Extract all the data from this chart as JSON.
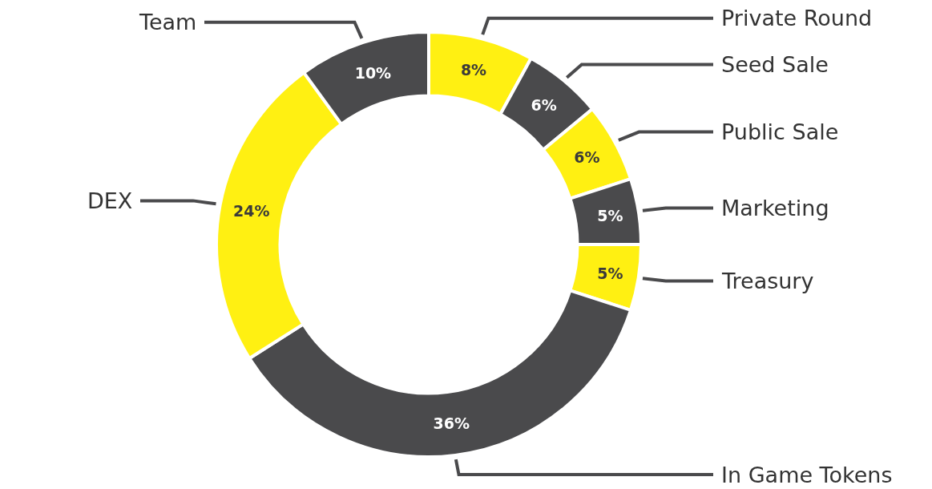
{
  "chart_data": {
    "type": "donut",
    "categories": [
      "Private Round",
      "Seed Sale",
      "Public Sale",
      "Marketing",
      "Treasury",
      "In Game Tokens",
      "DEX",
      "Team"
    ],
    "values": [
      8,
      6,
      6,
      5,
      5,
      36,
      24,
      10
    ],
    "value_labels": [
      "8%",
      "6%",
      "6%",
      "5%",
      "5%",
      "36%",
      "24%",
      "10%"
    ],
    "colors": [
      "#fff012",
      "#4a4a4c",
      "#fff012",
      "#4a4a4c",
      "#fff012",
      "#4a4a4c",
      "#fff012",
      "#4a4a4c"
    ],
    "legend": false
  }
}
